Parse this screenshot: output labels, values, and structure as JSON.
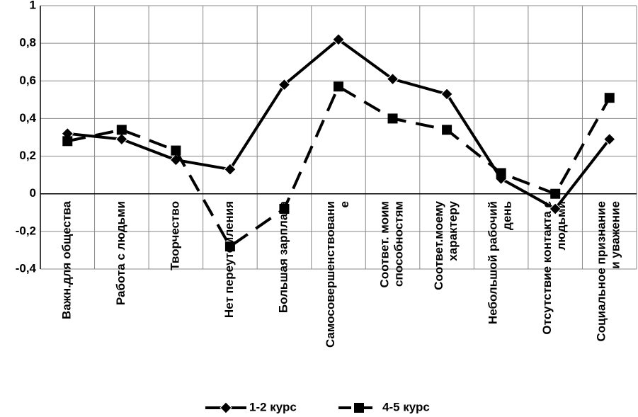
{
  "chart_data": {
    "type": "line",
    "categories": [
      "Важн.для общества",
      "Работа с людьми",
      "Творчество",
      "Нет переутомления",
      "Большая зарплата",
      "Самосовершенствовани\nе",
      "Соответ. моим\nспособностям",
      "Соответ.моему\nхарактеру",
      "Небольшой рабочий\nдень",
      "Отсутствие  контакта с\nлюдьми",
      "Социальное признание\nи уважение"
    ],
    "series": [
      {
        "name": "1-2 курс",
        "color": "#000000",
        "marker": "diamond",
        "dash": "solid",
        "values": [
          0.32,
          0.29,
          0.18,
          0.13,
          0.58,
          0.82,
          0.61,
          0.53,
          0.08,
          -0.08,
          0.29
        ]
      },
      {
        "name": "4-5 курс",
        "color": "#000000",
        "marker": "square",
        "dash": "dashed",
        "values": [
          0.28,
          0.34,
          0.23,
          -0.28,
          -0.08,
          0.57,
          0.4,
          0.34,
          0.11,
          0.0,
          0.51
        ]
      }
    ],
    "ylim": [
      -0.4,
      1
    ],
    "yticks": [
      {
        "value": -0.4,
        "label": "-0,4"
      },
      {
        "value": -0.2,
        "label": "-0,2"
      },
      0,
      {
        "value": 0.2,
        "label": "0,2"
      },
      {
        "value": 0.4,
        "label": "0,4"
      },
      {
        "value": 0.6,
        "label": "0,6"
      },
      {
        "value": 0.8,
        "label": "0,8"
      },
      1
    ],
    "grid": true,
    "legend": "bottom"
  }
}
